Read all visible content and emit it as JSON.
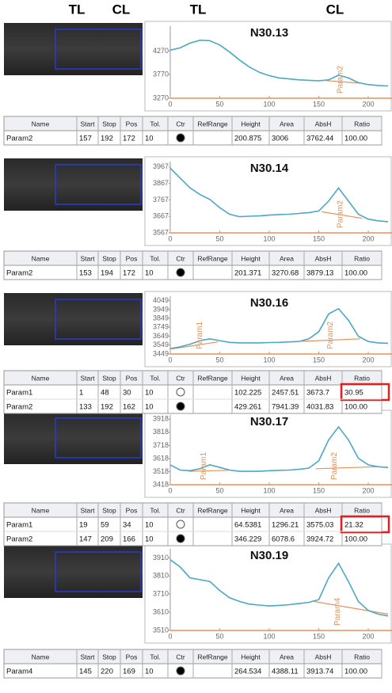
{
  "header": [
    "TL",
    "CL",
    "TL",
    "CL"
  ],
  "chart_data": [
    {
      "type": "line",
      "title": "N30.13",
      "x": [
        0,
        10,
        20,
        30,
        40,
        50,
        60,
        70,
        80,
        90,
        100,
        110,
        120,
        130,
        140,
        150,
        160,
        170,
        180,
        190,
        200,
        210,
        220
      ],
      "series": [
        {
          "color": "#4aa8c8",
          "values": [
            4290,
            4340,
            4440,
            4500,
            4490,
            4400,
            4250,
            4080,
            3930,
            3820,
            3750,
            3700,
            3680,
            3660,
            3650,
            3640,
            3660,
            3760,
            3700,
            3600,
            3560,
            3540,
            3530
          ]
        }
      ],
      "baselines": [
        {
          "x": [
            157,
            192
          ],
          "values": [
            3645,
            3590
          ]
        }
      ],
      "annotations": [
        {
          "text": "Param2",
          "x": 172
        }
      ],
      "xlim": [
        0,
        224
      ],
      "xticks": [
        0,
        50,
        100,
        150,
        200
      ],
      "ylim": [
        3270,
        4800
      ],
      "yticks": [
        3270,
        3770,
        4270
      ],
      "color_axis": "#e8915a"
    },
    {
      "type": "line",
      "title": "N30.14",
      "x": [
        0,
        10,
        20,
        30,
        40,
        50,
        60,
        70,
        80,
        90,
        100,
        110,
        120,
        130,
        140,
        150,
        160,
        170,
        180,
        190,
        200,
        210,
        220
      ],
      "series": [
        {
          "color": "#4aa8c8",
          "values": [
            3960,
            3900,
            3840,
            3800,
            3770,
            3720,
            3680,
            3665,
            3668,
            3670,
            3675,
            3678,
            3680,
            3685,
            3690,
            3700,
            3760,
            3840,
            3760,
            3680,
            3650,
            3640,
            3635
          ]
        }
      ],
      "baselines": [
        {
          "x": [
            153,
            194
          ],
          "values": [
            3695,
            3655
          ]
        }
      ],
      "annotations": [
        {
          "text": "Param2",
          "x": 172
        }
      ],
      "xlim": [
        0,
        224
      ],
      "xticks": [
        0,
        50,
        100,
        150,
        200
      ],
      "ylim": [
        3567,
        4000
      ],
      "yticks": [
        3567,
        3667,
        3767,
        3867,
        3967
      ],
      "color_axis": "#e8915a"
    },
    {
      "type": "line",
      "title": "N30.16",
      "x": [
        0,
        10,
        20,
        30,
        40,
        50,
        60,
        70,
        80,
        90,
        100,
        110,
        120,
        130,
        140,
        150,
        160,
        170,
        180,
        190,
        200,
        210,
        220
      ],
      "series": [
        {
          "color": "#4aa8c8",
          "values": [
            3510,
            3530,
            3560,
            3600,
            3620,
            3600,
            3580,
            3575,
            3575,
            3575,
            3578,
            3580,
            3585,
            3590,
            3620,
            3700,
            3900,
            3960,
            3830,
            3650,
            3590,
            3575,
            3570
          ]
        }
      ],
      "baselines": [
        {
          "x": [
            1,
            48
          ],
          "values": [
            3505,
            3585
          ]
        },
        {
          "x": [
            133,
            192
          ],
          "values": [
            3592,
            3620
          ]
        }
      ],
      "annotations": [
        {
          "text": "Param1",
          "x": 30
        },
        {
          "text": "Param2",
          "x": 162
        }
      ],
      "xlim": [
        0,
        224
      ],
      "xticks": [
        0,
        50,
        100,
        150,
        200
      ],
      "ylim": [
        3449,
        4100
      ],
      "yticks": [
        3449,
        3549,
        3649,
        3749,
        3849,
        3949,
        4049
      ],
      "color_axis": "#e8915a"
    },
    {
      "type": "line",
      "title": "N30.17",
      "x": [
        0,
        10,
        20,
        30,
        40,
        50,
        60,
        70,
        80,
        90,
        100,
        110,
        120,
        130,
        140,
        150,
        160,
        170,
        180,
        190,
        200,
        210,
        220
      ],
      "series": [
        {
          "color": "#4aa8c8",
          "values": [
            3570,
            3530,
            3525,
            3540,
            3570,
            3550,
            3530,
            3520,
            3520,
            3520,
            3525,
            3528,
            3530,
            3535,
            3545,
            3600,
            3760,
            3860,
            3760,
            3620,
            3570,
            3555,
            3550
          ]
        }
      ],
      "baselines": [
        {
          "x": [
            19,
            59
          ],
          "values": [
            3520,
            3528
          ]
        },
        {
          "x": [
            147,
            209
          ],
          "values": [
            3540,
            3555
          ]
        }
      ],
      "annotations": [
        {
          "text": "Param1",
          "x": 34
        },
        {
          "text": "Param2",
          "x": 166
        }
      ],
      "xlim": [
        0,
        224
      ],
      "xticks": [
        0,
        50,
        100,
        150,
        200
      ],
      "ylim": [
        3418,
        3950
      ],
      "yticks": [
        3418,
        3518,
        3618,
        3718,
        3818,
        3918
      ],
      "color_axis": "#e8915a"
    },
    {
      "type": "line",
      "title": "N30.19",
      "x": [
        0,
        10,
        20,
        30,
        40,
        50,
        60,
        70,
        80,
        90,
        100,
        110,
        120,
        130,
        140,
        150,
        160,
        170,
        180,
        190,
        200,
        210,
        220
      ],
      "series": [
        {
          "color": "#4aa8c8",
          "values": [
            3900,
            3860,
            3800,
            3790,
            3780,
            3730,
            3690,
            3670,
            3655,
            3650,
            3645,
            3648,
            3652,
            3658,
            3665,
            3680,
            3800,
            3880,
            3780,
            3670,
            3620,
            3600,
            3590
          ]
        }
      ],
      "baselines": [
        {
          "x": [
            145,
            220
          ],
          "values": [
            3670,
            3600
          ]
        }
      ],
      "annotations": [
        {
          "text": "Param4",
          "x": 169
        }
      ],
      "xlim": [
        0,
        224
      ],
      "xticks": [
        0,
        50,
        100,
        150,
        200
      ],
      "ylim": [
        3510,
        3960
      ],
      "yticks": [
        3510,
        3610,
        3710,
        3810,
        3910
      ],
      "color_axis": "#e8915a"
    }
  ],
  "tables": [
    {
      "columns": [
        "Name",
        "Start",
        "Stop",
        "Pos",
        "Tol.",
        "Ctr",
        "RefRange",
        "Height",
        "Area",
        "AbsH",
        "Ratio"
      ],
      "rows": [
        {
          "name": "Param2",
          "start": "157",
          "stop": "192",
          "pos": "172",
          "tol": "10",
          "ctr": true,
          "height": "200.875",
          "area": "3006",
          "absh": "3762.44",
          "ratio": "100.00",
          "highlight": false
        }
      ]
    },
    {
      "columns": [
        "Name",
        "Start",
        "Stop",
        "Pos",
        "Tol.",
        "Ctr",
        "RefRange",
        "Height",
        "Area",
        "AbsH",
        "Ratio"
      ],
      "rows": [
        {
          "name": "Param2",
          "start": "153",
          "stop": "194",
          "pos": "172",
          "tol": "10",
          "ctr": true,
          "height": "201.371",
          "area": "3270.68",
          "absh": "3879.13",
          "ratio": "100.00",
          "highlight": false
        }
      ]
    },
    {
      "columns": [
        "Name",
        "Start",
        "Stop",
        "Pos",
        "Tol.",
        "Ctr",
        "RefRange",
        "Height",
        "Area",
        "AbsH",
        "Ratio"
      ],
      "rows": [
        {
          "name": "Param1",
          "start": "1",
          "stop": "48",
          "pos": "30",
          "tol": "10",
          "ctr": false,
          "height": "102.225",
          "area": "2457.51",
          "absh": "3673.7",
          "ratio": "30.95",
          "highlight": true
        },
        {
          "name": "Param2",
          "start": "133",
          "stop": "192",
          "pos": "162",
          "tol": "10",
          "ctr": true,
          "height": "429.261",
          "area": "7941.39",
          "absh": "4031.83",
          "ratio": "100.00",
          "highlight": false
        }
      ]
    },
    {
      "columns": [
        "Name",
        "Start",
        "Stop",
        "Pos",
        "Tol.",
        "Ctr",
        "RefRange",
        "Height",
        "Area",
        "AbsH",
        "Ratio"
      ],
      "rows": [
        {
          "name": "Param1",
          "start": "19",
          "stop": "59",
          "pos": "34",
          "tol": "10",
          "ctr": false,
          "height": "64.5381",
          "area": "1296.21",
          "absh": "3575.03",
          "ratio": "21.32",
          "highlight": true
        },
        {
          "name": "Param2",
          "start": "147",
          "stop": "209",
          "pos": "166",
          "tol": "10",
          "ctr": true,
          "height": "346.229",
          "area": "6078.6",
          "absh": "3924.72",
          "ratio": "100.00",
          "highlight": false
        }
      ]
    },
    {
      "columns": [
        "Name",
        "Start",
        "Stop",
        "Pos",
        "Tol.",
        "Ctr",
        "RefRange",
        "Height",
        "Area",
        "AbsH",
        "Ratio"
      ],
      "rows": [
        {
          "name": "Param4",
          "start": "145",
          "stop": "220",
          "pos": "169",
          "tol": "10",
          "ctr": true,
          "height": "264.534",
          "area": "4388.11",
          "absh": "3913.74",
          "ratio": "100.00",
          "highlight": false
        }
      ]
    }
  ]
}
